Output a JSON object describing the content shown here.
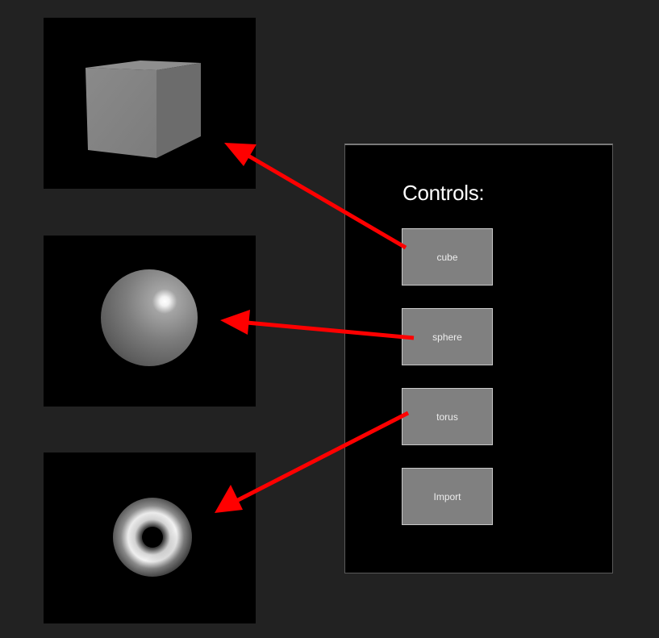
{
  "viewports": [
    {
      "shape": "cube"
    },
    {
      "shape": "sphere"
    },
    {
      "shape": "torus"
    }
  ],
  "controls": {
    "title": "Controls:",
    "buttons": [
      "cube",
      "sphere",
      "torus",
      "Import"
    ]
  },
  "colors": {
    "background": "#222222",
    "viewport_bg": "#000000",
    "button_bg": "#808080",
    "arrow": "#ff0000"
  }
}
